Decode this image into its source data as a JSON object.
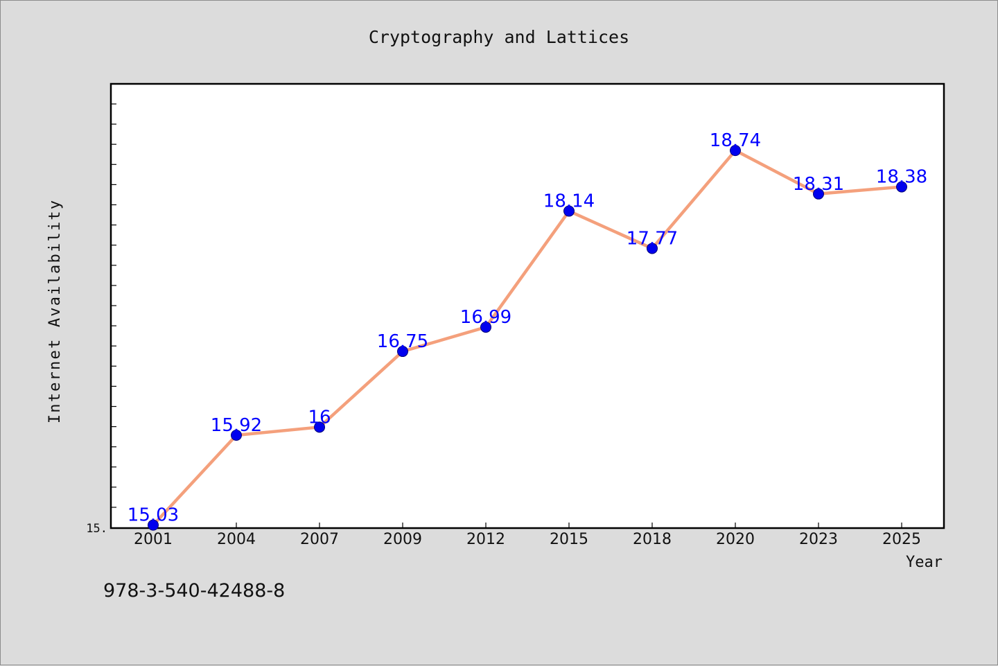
{
  "chart_data": {
    "type": "line",
    "title": "Cryptography and Lattices",
    "xlabel": "Year",
    "ylabel": "Internet Availability",
    "categories": [
      "2001",
      "2004",
      "2007",
      "2009",
      "2012",
      "2015",
      "2018",
      "2020",
      "2023",
      "2025"
    ],
    "series": [
      {
        "values": [
          15.03,
          15.92,
          16,
          16.75,
          16.99,
          18.14,
          17.77,
          18.74,
          18.31,
          18.38
        ],
        "labels": [
          "15.03",
          "15.92",
          "16",
          "16.75",
          "16.99",
          "18.14",
          "17.77",
          "18.74",
          "18.31",
          "18.38"
        ],
        "line_color": "#f4a07c",
        "marker_color": "#0000ee",
        "label_color": "#0000ff"
      }
    ],
    "ylim": [
      15,
      19.4
    ],
    "yticks": [
      15
    ],
    "ytick_labels": [
      "15."
    ],
    "grid": false,
    "legend": "none"
  },
  "footer": {
    "isbn": "978-3-540-42488-8"
  },
  "colors": {
    "background": "#dcdcdc",
    "plot_background": "#ffffff",
    "axis": "#000000"
  }
}
